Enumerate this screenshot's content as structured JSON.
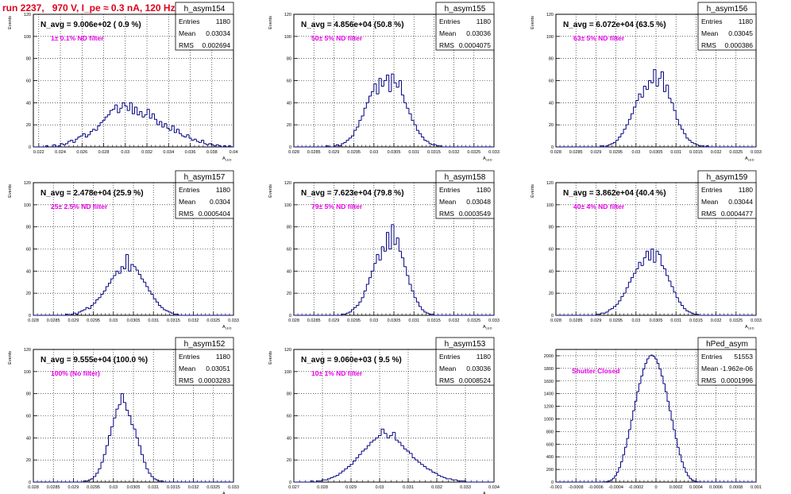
{
  "run_title": "run 2237,   970 V, I_pe ≈ 0.3 nA, 120 Hz",
  "colors": {
    "title": "#e0001a",
    "histogram": "#000080",
    "annotation": "#e600e6",
    "grid": "#000000",
    "frame": "#000000"
  },
  "chart_data": [
    {
      "type": "bar",
      "hist_name": "h_asym154",
      "headline": "N_avg = 9.006e+02 ( 0.9 %)",
      "note": "1± 0.1% ND filter",
      "ylabel": "Events",
      "xlabel": "A_LED",
      "stats": {
        "entries_label": "Entries",
        "entries": "1180",
        "mean_label": "Mean",
        "mean": "0.03034",
        "rms_label": "RMS",
        "rms": "0.002694"
      },
      "xlim": [
        0.0215,
        0.04
      ],
      "ylim": [
        0,
        120
      ],
      "x_ticks": [
        "0.022",
        "0.024",
        "0.026",
        "0.028",
        "0.03",
        "0.032",
        "0.034",
        "0.036",
        "0.038",
        "0.04"
      ],
      "y_ticks": [
        "0",
        "20",
        "40",
        "60",
        "80",
        "100",
        "120"
      ],
      "values": [
        0,
        0,
        0,
        0,
        0,
        1,
        0,
        0,
        2,
        0,
        1,
        3,
        2,
        3,
        5,
        6,
        4,
        7,
        9,
        10,
        12,
        9,
        11,
        14,
        16,
        15,
        19,
        22,
        24,
        27,
        29,
        33,
        34,
        38,
        31,
        35,
        40,
        37,
        33,
        40,
        30,
        36,
        29,
        32,
        27,
        29,
        34,
        26,
        30,
        25,
        20,
        23,
        18,
        21,
        17,
        15,
        19,
        13,
        16,
        12,
        10,
        9,
        11,
        8,
        6,
        7,
        5,
        4,
        6,
        3,
        2,
        3,
        2,
        1,
        2,
        1,
        0,
        1,
        0,
        1,
        0
      ]
    },
    {
      "type": "bar",
      "hist_name": "h_asym155",
      "headline": "N_avg = 4.856e+04 (50.8 %)",
      "note": "50± 5% ND filter",
      "ylabel": "Events",
      "xlabel": "A_LED",
      "stats": {
        "entries_label": "Entries",
        "entries": "1180",
        "mean_label": "Mean",
        "mean": "0.03036",
        "rms_label": "RMS",
        "rms": "0.0004075"
      },
      "xlim": [
        0.028,
        0.033
      ],
      "ylim": [
        0,
        120
      ],
      "x_ticks": [
        "0.028",
        "0.0285",
        "0.029",
        "0.0295",
        "0.03",
        "0.0305",
        "0.031",
        "0.0315",
        "0.032",
        "0.0325",
        "0.033"
      ],
      "y_ticks": [
        "0",
        "20",
        "40",
        "60",
        "80",
        "100",
        "120"
      ],
      "values": [
        0,
        0,
        0,
        0,
        0,
        0,
        0,
        0,
        0,
        0,
        0,
        0,
        0,
        1,
        0,
        0,
        1,
        2,
        1,
        3,
        4,
        6,
        8,
        10,
        15,
        18,
        24,
        28,
        35,
        40,
        46,
        50,
        57,
        48,
        62,
        55,
        60,
        65,
        50,
        66,
        58,
        54,
        60,
        47,
        40,
        35,
        30,
        24,
        20,
        15,
        12,
        9,
        6,
        5,
        3,
        2,
        2,
        1,
        1,
        0,
        0,
        0,
        0,
        0,
        0,
        0,
        0,
        0,
        0,
        0,
        0,
        0,
        0,
        0,
        0,
        0,
        0,
        0,
        0,
        0
      ]
    },
    {
      "type": "bar",
      "hist_name": "h_asym156",
      "headline": "N_avg = 6.072e+04 (63.5 %)",
      "note": "63± 5% ND filter",
      "ylabel": "Events",
      "xlabel": "A_LED",
      "stats": {
        "entries_label": "Entries",
        "entries": "1180",
        "mean_label": "Mean",
        "mean": "0.03045",
        "rms_label": "RMS",
        "rms": "0.000386"
      },
      "xlim": [
        0.028,
        0.033
      ],
      "ylim": [
        0,
        120
      ],
      "x_ticks": [
        "0.028",
        "0.0285",
        "0.029",
        "0.0295",
        "0.03",
        "0.0305",
        "0.031",
        "0.0315",
        "0.032",
        "0.0325",
        "0.033"
      ],
      "y_ticks": [
        "0",
        "20",
        "40",
        "60",
        "80",
        "100",
        "120"
      ],
      "values": [
        0,
        0,
        0,
        0,
        0,
        0,
        0,
        0,
        0,
        0,
        0,
        0,
        0,
        0,
        0,
        0,
        0,
        0,
        1,
        0,
        1,
        2,
        3,
        4,
        6,
        9,
        12,
        16,
        20,
        25,
        30,
        36,
        42,
        48,
        45,
        55,
        52,
        60,
        58,
        70,
        55,
        62,
        68,
        50,
        56,
        44,
        40,
        33,
        25,
        20,
        16,
        12,
        8,
        6,
        4,
        3,
        2,
        1,
        1,
        0,
        1,
        0,
        0,
        0,
        0,
        0,
        0,
        0,
        0,
        0,
        0,
        0,
        0,
        0,
        0,
        0,
        0,
        0,
        0,
        0
      ]
    },
    {
      "type": "bar",
      "hist_name": "h_asym157",
      "headline": "N_avg = 2.478e+04 (25.9 %)",
      "note": "25± 2.5% ND filter",
      "ylabel": "Events",
      "xlabel": "A_LED",
      "stats": {
        "entries_label": "Entries",
        "entries": "1180",
        "mean_label": "Mean",
        "mean": "0.0304",
        "rms_label": "RMS",
        "rms": "0.0005404"
      },
      "xlim": [
        0.028,
        0.033
      ],
      "ylim": [
        0,
        120
      ],
      "x_ticks": [
        "0.028",
        "0.0285",
        "0.029",
        "0.0295",
        "0.03",
        "0.0305",
        "0.031",
        "0.0315",
        "0.032",
        "0.0325",
        "0.033"
      ],
      "y_ticks": [
        "0",
        "20",
        "40",
        "60",
        "80",
        "100",
        "120"
      ],
      "values": [
        0,
        0,
        0,
        0,
        0,
        0,
        0,
        0,
        0,
        0,
        0,
        0,
        0,
        1,
        0,
        1,
        2,
        1,
        3,
        4,
        5,
        7,
        6,
        9,
        11,
        14,
        16,
        19,
        22,
        26,
        29,
        33,
        36,
        40,
        38,
        44,
        42,
        55,
        40,
        46,
        44,
        41,
        37,
        33,
        30,
        26,
        22,
        19,
        15,
        12,
        9,
        7,
        5,
        4,
        3,
        2,
        1,
        1,
        0,
        0,
        0,
        0,
        0,
        0,
        0,
        0,
        0,
        0,
        0,
        0,
        0,
        0,
        0,
        0,
        0,
        0,
        0,
        0,
        0,
        0
      ]
    },
    {
      "type": "bar",
      "hist_name": "h_asym158",
      "headline": "N_avg = 7.623e+04 (79.8 %)",
      "note": "79± 5% ND filter",
      "ylabel": "Events",
      "xlabel": "A_LED",
      "stats": {
        "entries_label": "Entries",
        "entries": "1180",
        "mean_label": "Mean",
        "mean": "0.03048",
        "rms_label": "RMS",
        "rms": "0.0003549"
      },
      "xlim": [
        0.028,
        0.033
      ],
      "ylim": [
        0,
        120
      ],
      "x_ticks": [
        "0.028",
        "0.0285",
        "0.029",
        "0.0295",
        "0.03",
        "0.0305",
        "0.031",
        "0.0315",
        "0.032",
        "0.0325",
        "0.033"
      ],
      "y_ticks": [
        "0",
        "20",
        "40",
        "60",
        "80",
        "100",
        "120"
      ],
      "values": [
        0,
        0,
        0,
        0,
        0,
        0,
        0,
        0,
        0,
        0,
        0,
        0,
        0,
        0,
        0,
        0,
        0,
        0,
        0,
        1,
        1,
        2,
        3,
        5,
        7,
        9,
        12,
        16,
        22,
        28,
        34,
        40,
        47,
        55,
        50,
        62,
        58,
        75,
        60,
        82,
        64,
        70,
        58,
        52,
        44,
        36,
        28,
        22,
        16,
        12,
        8,
        5,
        3,
        2,
        1,
        1,
        0,
        0,
        0,
        0,
        0,
        0,
        0,
        0,
        0,
        0,
        0,
        0,
        0,
        0,
        0,
        0,
        0,
        0,
        0,
        0,
        0,
        0,
        0,
        0
      ]
    },
    {
      "type": "bar",
      "hist_name": "h_asym159",
      "headline": "N_avg = 3.862e+04 (40.4 %)",
      "note": "40± 4% ND filter",
      "ylabel": "Events",
      "xlabel": "A_LED",
      "stats": {
        "entries_label": "Entries",
        "entries": "1180",
        "mean_label": "Mean",
        "mean": "0.03044",
        "rms_label": "RMS",
        "rms": "0.0004477"
      },
      "xlim": [
        0.028,
        0.033
      ],
      "ylim": [
        0,
        120
      ],
      "x_ticks": [
        "0.028",
        "0.0285",
        "0.029",
        "0.0295",
        "0.03",
        "0.0305",
        "0.031",
        "0.0315",
        "0.032",
        "0.0325",
        "0.033"
      ],
      "y_ticks": [
        "0",
        "20",
        "40",
        "60",
        "80",
        "100",
        "120"
      ],
      "values": [
        0,
        0,
        0,
        0,
        0,
        0,
        0,
        0,
        0,
        0,
        0,
        0,
        0,
        0,
        0,
        0,
        1,
        1,
        2,
        2,
        3,
        5,
        6,
        8,
        10,
        13,
        17,
        20,
        25,
        30,
        34,
        38,
        42,
        48,
        45,
        52,
        58,
        50,
        60,
        48,
        58,
        55,
        45,
        42,
        36,
        31,
        26,
        21,
        16,
        12,
        9,
        6,
        4,
        3,
        2,
        1,
        1,
        0,
        0,
        0,
        0,
        0,
        0,
        0,
        0,
        0,
        0,
        0,
        0,
        0,
        0,
        0,
        0,
        0,
        0,
        0,
        0,
        0,
        0,
        0
      ]
    },
    {
      "type": "bar",
      "hist_name": "h_asym152",
      "headline": "N_avg = 9.555e+04 (100.0 %)",
      "note": "100% (No filter)",
      "ylabel": "Events",
      "xlabel": "A_LED",
      "stats": {
        "entries_label": "Entries",
        "entries": "1180",
        "mean_label": "Mean",
        "mean": "0.03051",
        "rms_label": "RMS",
        "rms": "0.0003283"
      },
      "xlim": [
        0.028,
        0.033
      ],
      "ylim": [
        0,
        120
      ],
      "x_ticks": [
        "0.028",
        "0.0285",
        "0.029",
        "0.0295",
        "0.03",
        "0.0305",
        "0.031",
        "0.0315",
        "0.032",
        "0.0325",
        "0.033"
      ],
      "y_ticks": [
        "0",
        "20",
        "40",
        "60",
        "80",
        "100",
        "120"
      ],
      "values": [
        0,
        0,
        0,
        0,
        0,
        0,
        0,
        0,
        0,
        0,
        0,
        0,
        0,
        0,
        0,
        0,
        0,
        0,
        0,
        0,
        1,
        1,
        2,
        3,
        5,
        8,
        12,
        18,
        25,
        33,
        42,
        50,
        58,
        66,
        70,
        80,
        72,
        65,
        60,
        52,
        48,
        40,
        33,
        25,
        18,
        12,
        8,
        5,
        3,
        2,
        1,
        1,
        0,
        0,
        0,
        0,
        0,
        0,
        0,
        0,
        0,
        0,
        0,
        0,
        0,
        0,
        0,
        0,
        0,
        0,
        0,
        0,
        0,
        0,
        0,
        0,
        0,
        0,
        0,
        0
      ]
    },
    {
      "type": "bar",
      "hist_name": "h_asym153",
      "headline": "N_avg = 9.060e+03 ( 9.5 %)",
      "note": "10± 1% ND filter",
      "ylabel": "Events",
      "xlabel": "A_LED",
      "stats": {
        "entries_label": "Entries",
        "entries": "1180",
        "mean_label": "Mean",
        "mean": "0.03036",
        "rms_label": "RMS",
        "rms": "0.0008524"
      },
      "xlim": [
        0.027,
        0.034
      ],
      "ylim": [
        0,
        120
      ],
      "x_ticks": [
        "0.027",
        "0.028",
        "0.029",
        "0.03",
        "0.031",
        "0.032",
        "0.033",
        "0.034"
      ],
      "y_ticks": [
        "0",
        "20",
        "40",
        "60",
        "80",
        "100",
        "120"
      ],
      "values": [
        0,
        0,
        0,
        0,
        0,
        0,
        1,
        0,
        1,
        1,
        2,
        2,
        3,
        4,
        5,
        6,
        8,
        10,
        12,
        14,
        16,
        19,
        22,
        25,
        28,
        30,
        33,
        36,
        38,
        40,
        42,
        48,
        44,
        40,
        42,
        45,
        38,
        36,
        33,
        30,
        28,
        26,
        22,
        20,
        18,
        16,
        14,
        12,
        11,
        9,
        8,
        6,
        5,
        4,
        3,
        3,
        2,
        2,
        1,
        1,
        1,
        0,
        0,
        0,
        0,
        0,
        0,
        0,
        0,
        0,
        0
      ]
    },
    {
      "type": "bar",
      "hist_name": "hPed_asym",
      "headline": "",
      "note": "Shutter Closed",
      "ylabel": "",
      "xlabel": "",
      "stats": {
        "entries_label": "Entries",
        "entries": "51553",
        "mean_label": "Mean",
        "mean": "-1.962e-06",
        "rms_label": "RMS",
        "rms": "0.0001996"
      },
      "xlim": [
        -0.001,
        0.001
      ],
      "ylim": [
        0,
        2100
      ],
      "x_ticks": [
        "-0.001",
        "-0.0008",
        "-0.0006",
        "-0.0004",
        "-0.0002",
        "0",
        "0.0002",
        "0.0004",
        "0.0006",
        "0.0008",
        "0.001"
      ],
      "y_ticks": [
        "0",
        "200",
        "400",
        "600",
        "800",
        "1000",
        "1200",
        "1400",
        "1600",
        "1800",
        "2000"
      ],
      "values": [
        0,
        0,
        0,
        0,
        0,
        0,
        0,
        0,
        0,
        0,
        0,
        0,
        0,
        0,
        0,
        0,
        0,
        0,
        0,
        0,
        0,
        0,
        0,
        1,
        3,
        8,
        18,
        35,
        60,
        100,
        155,
        230,
        320,
        430,
        550,
        690,
        830,
        980,
        1130,
        1280,
        1430,
        1560,
        1680,
        1790,
        1880,
        1950,
        2000,
        2010,
        1990,
        1950,
        1880,
        1790,
        1680,
        1560,
        1430,
        1280,
        1130,
        980,
        830,
        690,
        550,
        430,
        320,
        230,
        155,
        100,
        60,
        35,
        18,
        8,
        3,
        1,
        0,
        0,
        0,
        0,
        0,
        0,
        0,
        0,
        0,
        0,
        0,
        0,
        0,
        0,
        0,
        0,
        0,
        0,
        0,
        0,
        0,
        0,
        0,
        0,
        0,
        0,
        0
      ]
    }
  ]
}
